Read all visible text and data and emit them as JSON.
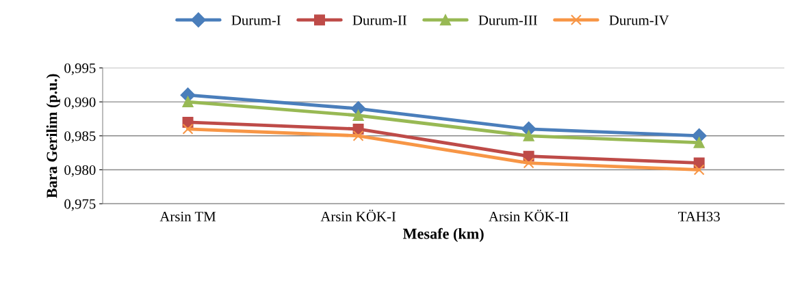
{
  "chart_data": {
    "type": "line",
    "xlabel": "Mesafe (km)",
    "ylabel": "Bara Gerilim (p.u.)",
    "categories": [
      "Arsin TM",
      "Arsin KÖK-I",
      "Arsin KÖK-II",
      "TAH33"
    ],
    "series": [
      {
        "name": "Durum-I",
        "color": "#4a7ebb",
        "marker": "diamond",
        "values": [
          0.991,
          0.989,
          0.986,
          0.985
        ]
      },
      {
        "name": "Durum-II",
        "color": "#be4b48",
        "marker": "square",
        "values": [
          0.987,
          0.986,
          0.982,
          0.981
        ]
      },
      {
        "name": "Durum-III",
        "color": "#98b954",
        "marker": "triangle",
        "values": [
          0.99,
          0.988,
          0.985,
          0.984
        ]
      },
      {
        "name": "Durum-IV",
        "color": "#f79646",
        "marker": "cross",
        "values": [
          0.986,
          0.985,
          0.981,
          0.98
        ]
      }
    ],
    "ylim": [
      0.975,
      0.995
    ],
    "yticks": [
      {
        "value": 0.975,
        "label": "0,975"
      },
      {
        "value": 0.98,
        "label": "0,980"
      },
      {
        "value": 0.985,
        "label": "0,985"
      },
      {
        "value": 0.99,
        "label": "0,990"
      },
      {
        "value": 0.995,
        "label": "0,995"
      }
    ],
    "grid": "y",
    "legend": "top",
    "line_style": "solid"
  }
}
